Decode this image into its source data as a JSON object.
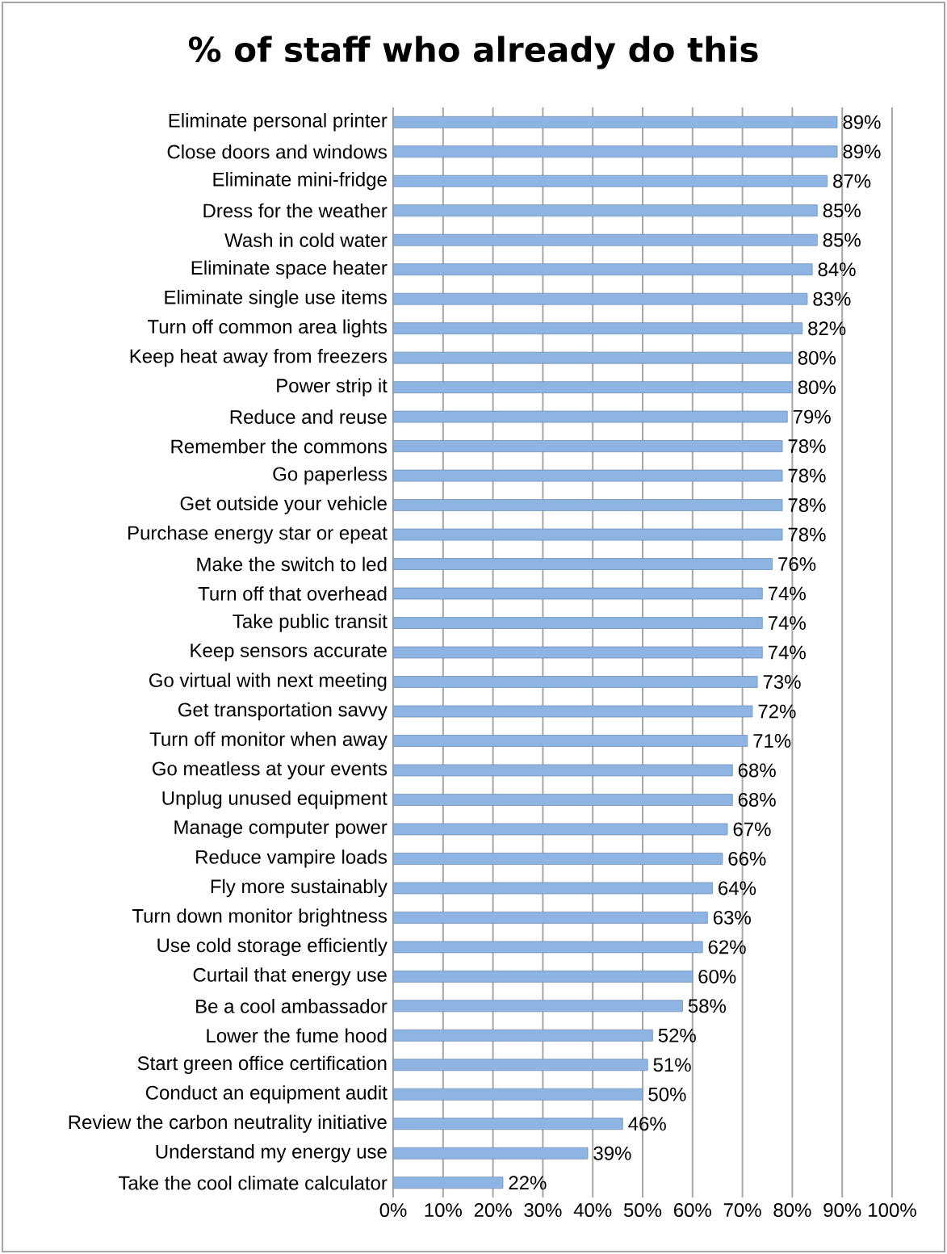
{
  "chart_data": {
    "type": "bar",
    "orientation": "horizontal",
    "title": "% of staff who already do this",
    "categories": [
      "Eliminate personal printer",
      "Close doors and windows",
      "Eliminate mini-fridge",
      "Dress for the weather",
      "Wash in cold water",
      "Eliminate space heater",
      "Eliminate single use items",
      "Turn off common area lights",
      "Keep heat away from freezers",
      "Power strip it",
      "Reduce and reuse",
      "Remember the commons",
      "Go paperless",
      "Get outside your vehicle",
      "Purchase energy star or epeat",
      "Make the switch to led",
      "Turn off that overhead",
      "Take public transit",
      "Keep sensors accurate",
      "Go virtual with next meeting",
      "Get transportation savvy",
      "Turn off monitor when away",
      "Go meatless at your events",
      "Unplug unused equipment",
      "Manage computer power",
      "Reduce vampire loads",
      "Fly more sustainably",
      "Turn down monitor brightness",
      "Use cold storage efficiently",
      "Curtail that energy use",
      "Be a cool ambassador",
      "Lower the fume hood",
      "Start green office certification",
      "Conduct an equipment audit",
      "Review the carbon neutrality initiative",
      "Understand my energy use",
      "Take the cool climate calculator"
    ],
    "values": [
      89,
      89,
      87,
      85,
      85,
      84,
      83,
      82,
      80,
      80,
      79,
      78,
      78,
      78,
      78,
      76,
      74,
      74,
      74,
      73,
      72,
      71,
      68,
      68,
      67,
      66,
      64,
      63,
      62,
      60,
      58,
      52,
      51,
      50,
      46,
      39,
      22
    ],
    "value_labels": [
      "89%",
      "89%",
      "87%",
      "85%",
      "85%",
      "84%",
      "83%",
      "82%",
      "80%",
      "80%",
      "79%",
      "78%",
      "78%",
      "78%",
      "78%",
      "76%",
      "74%",
      "74%",
      "74%",
      "73%",
      "72%",
      "71%",
      "68%",
      "68%",
      "67%",
      "66%",
      "64%",
      "63%",
      "62%",
      "60%",
      "58%",
      "52%",
      "51%",
      "50%",
      "46%",
      "39%",
      "22%"
    ],
    "color": "#8db4e2",
    "xlim": [
      0,
      100
    ],
    "xticks": [
      {
        "value": 0,
        "label": "0%"
      },
      {
        "value": 10,
        "label": "10%"
      },
      {
        "value": 20,
        "label": "20%"
      },
      {
        "value": 30,
        "label": "30%"
      },
      {
        "value": 40,
        "label": "40%"
      },
      {
        "value": 50,
        "label": "50%"
      },
      {
        "value": 60,
        "label": "60%"
      },
      {
        "value": 70,
        "label": "70%"
      },
      {
        "value": 80,
        "label": "80%"
      },
      {
        "value": 90,
        "label": "90%"
      },
      {
        "value": 100,
        "label": "100%"
      }
    ],
    "grid": "x"
  }
}
